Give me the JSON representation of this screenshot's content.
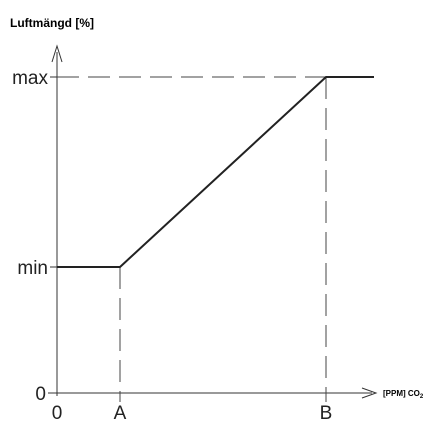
{
  "chart_data": {
    "type": "line",
    "ylabel": "Luftmängd [%]",
    "xlabel": "[PPM] CO",
    "xlabel_subscript": "2",
    "x_tick_labels": [
      "0",
      "A",
      "B"
    ],
    "y_tick_labels": [
      "0",
      "min",
      "max"
    ],
    "series": [
      {
        "points": [
          {
            "x": "0",
            "y": "min"
          },
          {
            "x": "A",
            "y": "min"
          },
          {
            "x": "B",
            "y": "max"
          },
          {
            "x": "end",
            "y": "max"
          }
        ]
      }
    ],
    "grid": false,
    "reference_lines": "dashed at A, B and max"
  }
}
